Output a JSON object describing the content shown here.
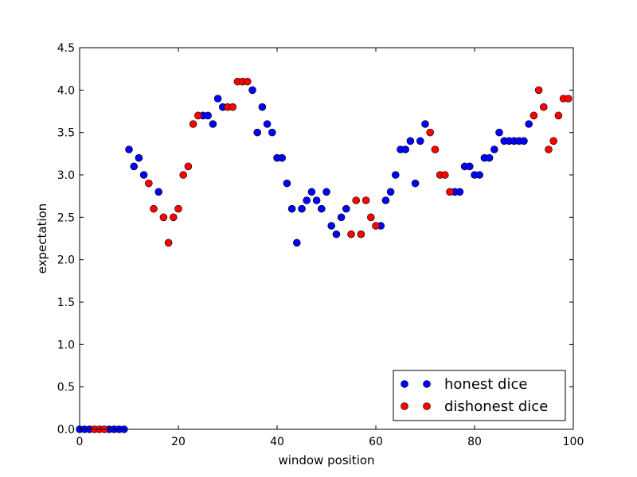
{
  "chart_data": {
    "type": "scatter",
    "xlabel": "window position",
    "ylabel": "expectation",
    "xlim": [
      0,
      100
    ],
    "ylim": [
      0,
      4.5
    ],
    "xticks": [
      "0",
      "20",
      "40",
      "60",
      "80",
      "100"
    ],
    "yticks": [
      "0.0",
      "0.5",
      "1.0",
      "1.5",
      "2.0",
      "2.5",
      "3.0",
      "3.5",
      "4.0",
      "4.5"
    ],
    "grid": false,
    "legend_position": "bottom-right",
    "series": [
      {
        "name": "honest dice",
        "color": "#0000ff",
        "points": [
          [
            0,
            0
          ],
          [
            1,
            0
          ],
          [
            2,
            0
          ],
          [
            6,
            0
          ],
          [
            7,
            0
          ],
          [
            8,
            0
          ],
          [
            9,
            0
          ],
          [
            10,
            3.3
          ],
          [
            11,
            3.1
          ],
          [
            12,
            3.2
          ],
          [
            13,
            3.0
          ],
          [
            16,
            2.8
          ],
          [
            25,
            3.7
          ],
          [
            26,
            3.7
          ],
          [
            27,
            3.6
          ],
          [
            28,
            3.9
          ],
          [
            29,
            3.8
          ],
          [
            35,
            4.0
          ],
          [
            36,
            3.5
          ],
          [
            37,
            3.8
          ],
          [
            38,
            3.6
          ],
          [
            39,
            3.5
          ],
          [
            40,
            3.2
          ],
          [
            41,
            3.2
          ],
          [
            42,
            2.9
          ],
          [
            43,
            2.6
          ],
          [
            44,
            2.2
          ],
          [
            45,
            2.6
          ],
          [
            46,
            2.7
          ],
          [
            47,
            2.8
          ],
          [
            48,
            2.7
          ],
          [
            49,
            2.6
          ],
          [
            50,
            2.8
          ],
          [
            51,
            2.4
          ],
          [
            52,
            2.3
          ],
          [
            53,
            2.5
          ],
          [
            54,
            2.6
          ],
          [
            61,
            2.4
          ],
          [
            62,
            2.7
          ],
          [
            63,
            2.8
          ],
          [
            64,
            3.0
          ],
          [
            65,
            3.3
          ],
          [
            66,
            3.3
          ],
          [
            67,
            3.4
          ],
          [
            68,
            2.9
          ],
          [
            69,
            3.4
          ],
          [
            70,
            3.6
          ],
          [
            76,
            2.8
          ],
          [
            77,
            2.8
          ],
          [
            78,
            3.1
          ],
          [
            79,
            3.1
          ],
          [
            80,
            3.0
          ],
          [
            81,
            3.0
          ],
          [
            82,
            3.2
          ],
          [
            83,
            3.2
          ],
          [
            84,
            3.3
          ],
          [
            85,
            3.5
          ],
          [
            86,
            3.4
          ],
          [
            87,
            3.4
          ],
          [
            88,
            3.4
          ],
          [
            89,
            3.4
          ],
          [
            90,
            3.4
          ],
          [
            91,
            3.6
          ]
        ]
      },
      {
        "name": "dishonest dice",
        "color": "#ff0000",
        "points": [
          [
            3,
            0
          ],
          [
            4,
            0
          ],
          [
            5,
            0
          ],
          [
            14,
            2.9
          ],
          [
            15,
            2.6
          ],
          [
            17,
            2.5
          ],
          [
            18,
            2.2
          ],
          [
            19,
            2.5
          ],
          [
            20,
            2.6
          ],
          [
            21,
            3.0
          ],
          [
            22,
            3.1
          ],
          [
            23,
            3.6
          ],
          [
            24,
            3.7
          ],
          [
            30,
            3.8
          ],
          [
            31,
            3.8
          ],
          [
            32,
            4.1
          ],
          [
            33,
            4.1
          ],
          [
            34,
            4.1
          ],
          [
            55,
            2.3
          ],
          [
            56,
            2.7
          ],
          [
            57,
            2.3
          ],
          [
            58,
            2.7
          ],
          [
            59,
            2.5
          ],
          [
            60,
            2.4
          ],
          [
            71,
            3.5
          ],
          [
            72,
            3.3
          ],
          [
            73,
            3.0
          ],
          [
            74,
            3.0
          ],
          [
            75,
            2.8
          ],
          [
            92,
            3.7
          ],
          [
            93,
            4.0
          ],
          [
            94,
            3.8
          ],
          [
            95,
            3.3
          ],
          [
            96,
            3.4
          ],
          [
            97,
            3.7
          ],
          [
            98,
            3.9
          ],
          [
            99,
            3.9
          ]
        ]
      }
    ]
  }
}
